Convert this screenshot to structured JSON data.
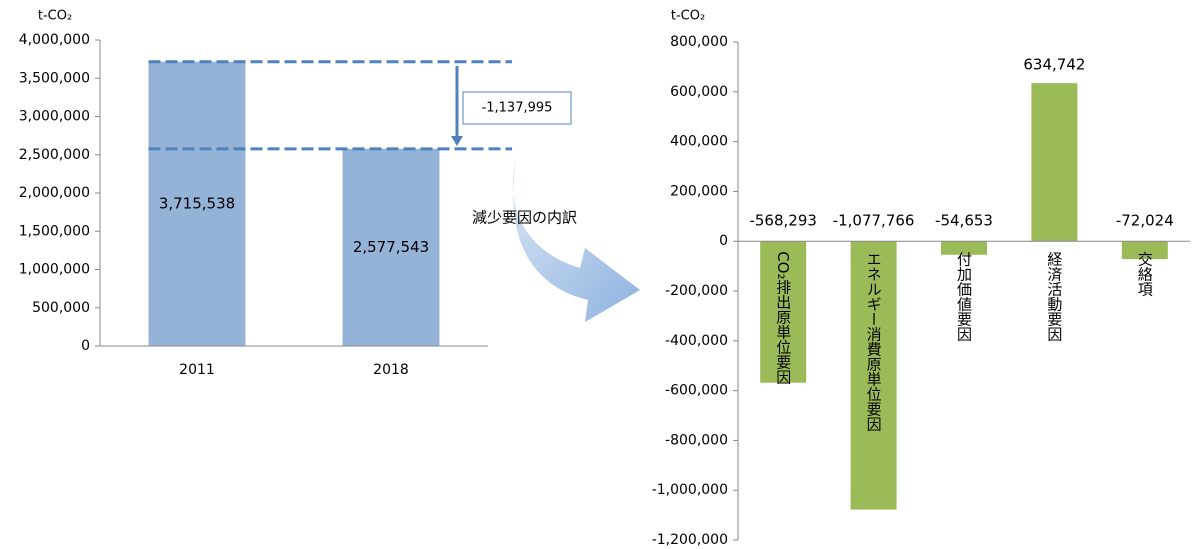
{
  "chart_data": [
    {
      "type": "bar",
      "y_label": "t-CO₂",
      "categories": [
        "2011",
        "2018"
      ],
      "values": [
        3715538,
        2577543
      ],
      "value_labels": [
        "3,715,538",
        "2,577,543"
      ],
      "color": "#95b3d7",
      "ylim": [
        0,
        4000000
      ],
      "yticks": [
        0,
        {
          "value": 500000,
          "label": "500,000"
        },
        {
          "value": 1000000,
          "label": "1,000,000"
        },
        {
          "value": 1500000,
          "label": "1,500,000"
        },
        {
          "value": 2000000,
          "label": "2,000,000"
        },
        {
          "value": 2500000,
          "label": "2,500,000"
        },
        {
          "value": 3000000,
          "label": "3,000,000"
        },
        {
          "value": 3500000,
          "label": "3,500,000"
        },
        {
          "value": 4000000,
          "label": "4,000,000"
        }
      ],
      "annotations": [
        "-1,137,995",
        "減少要因の内訳"
      ]
    },
    {
      "type": "bar",
      "y_label": "t-CO₂",
      "categories": [
        "CO₂排出原単位要因",
        "エネルギー消費原単位要因",
        "付加価値要因",
        "経済活動要因",
        "交絡項"
      ],
      "values": [
        -568293,
        -1077766,
        -54653,
        634742,
        -72024
      ],
      "value_labels": [
        "-568,293",
        "-1,077,766",
        "-54,653",
        "634,742",
        "-72,024"
      ],
      "color": "#9bbb59",
      "ylim": [
        -1200000,
        800000
      ],
      "yticks": [
        {
          "value": -1200000,
          "label": "-1,200,000"
        },
        {
          "value": -1000000,
          "label": "-1,000,000"
        },
        {
          "value": -800000,
          "label": "-800,000"
        },
        {
          "value": -600000,
          "label": "-600,000"
        },
        {
          "value": -400000,
          "label": "-400,000"
        },
        {
          "value": -200000,
          "label": "-200,000"
        },
        0,
        {
          "value": 200000,
          "label": "200,000"
        },
        {
          "value": 400000,
          "label": "400,000"
        },
        {
          "value": 600000,
          "label": "600,000"
        },
        {
          "value": 800000,
          "label": "800,000"
        }
      ]
    }
  ]
}
